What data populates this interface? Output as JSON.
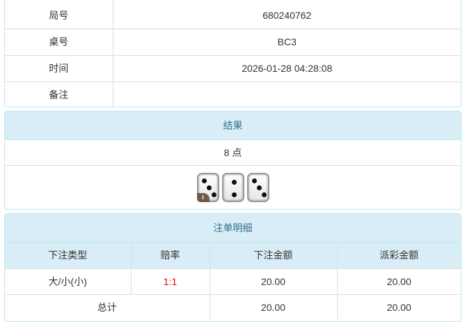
{
  "info": {
    "rows": [
      {
        "label": "局号",
        "value": "680240762"
      },
      {
        "label": "桌号",
        "value": "BC3"
      },
      {
        "label": "时间",
        "value": "2026-01-28 04:28:08"
      },
      {
        "label": "备注",
        "value": ""
      }
    ]
  },
  "result": {
    "title": "结果",
    "points": "8 点",
    "dice": [
      3,
      2,
      3
    ],
    "badge": "i"
  },
  "bets": {
    "title": "注单明细",
    "headers": [
      "下注类型",
      "赔率",
      "下注金额",
      "派彩金额"
    ],
    "rows": [
      {
        "type": "大/小(小)",
        "odds": "1:1",
        "amount": "20.00",
        "payout": "20.00"
      }
    ],
    "total": {
      "label": "总计",
      "amount": "20.00",
      "payout": "20.00"
    }
  },
  "colors": {
    "header_bg": "#d9edf7",
    "header_text": "#31708f",
    "odds": "#e00000"
  }
}
